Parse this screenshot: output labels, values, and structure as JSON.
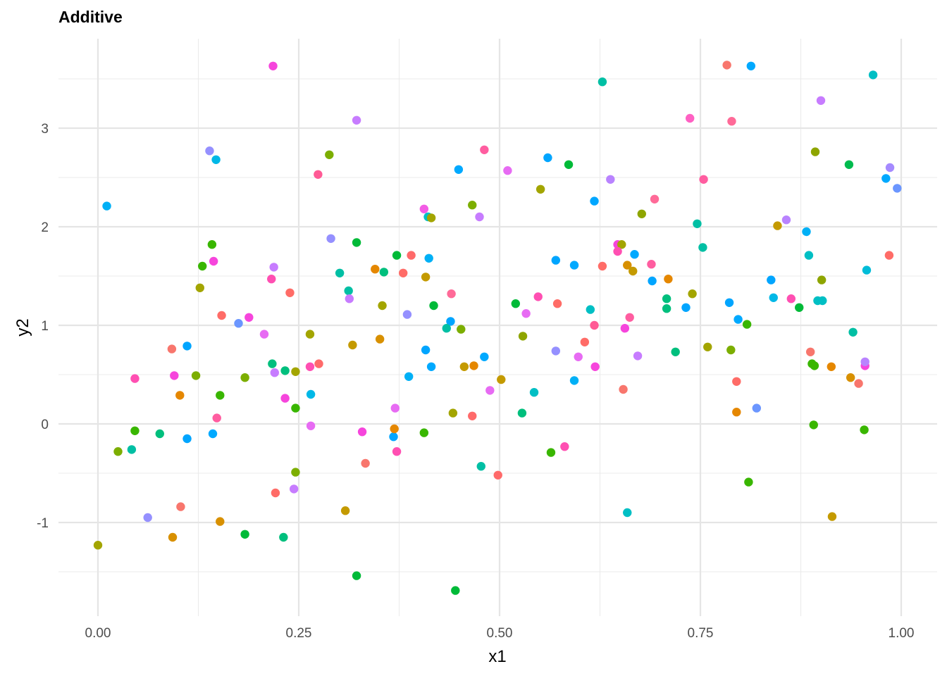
{
  "chart_data": {
    "type": "scatter",
    "title": "Additive",
    "xlabel": "x1",
    "ylabel": "y2",
    "xlim": [
      -0.048,
      1.046
    ],
    "ylim": [
      -1.95,
      3.92
    ],
    "xticks": [
      0.0,
      0.25,
      0.5,
      0.75,
      1.0
    ],
    "xtick_labels": [
      "0.00",
      "0.25",
      "0.50",
      "0.75",
      "1.00"
    ],
    "yticks": [
      -1,
      0,
      1,
      2,
      3
    ],
    "ytick_labels": [
      "-1",
      "0",
      "1",
      "2",
      "3"
    ],
    "grid": true,
    "legend": "none",
    "color_mapping": "hue palette by group (no legend shown)",
    "points": [
      [
        0.218,
        3.63,
        "#F645DC"
      ],
      [
        0.783,
        3.64,
        "#F8766D"
      ],
      [
        0.813,
        3.63,
        "#00A9FF"
      ],
      [
        0.965,
        3.54,
        "#00BFC4"
      ],
      [
        0.628,
        3.47,
        "#00BFA4"
      ],
      [
        0.9,
        3.28,
        "#C77CFF"
      ],
      [
        0.322,
        3.08,
        "#C77CFF"
      ],
      [
        0.737,
        3.1,
        "#FF61C3"
      ],
      [
        0.789,
        3.07,
        "#FF6A98"
      ],
      [
        0.139,
        2.77,
        "#9590FF"
      ],
      [
        0.147,
        2.68,
        "#00B8E7"
      ],
      [
        0.288,
        2.73,
        "#7CAE00"
      ],
      [
        0.56,
        2.7,
        "#00A5FF"
      ],
      [
        0.586,
        2.63,
        "#00BA38"
      ],
      [
        0.893,
        2.76,
        "#8EA500"
      ],
      [
        0.935,
        2.63,
        "#00BB4E"
      ],
      [
        0.481,
        2.78,
        "#FF5DA0"
      ],
      [
        0.449,
        2.58,
        "#00A9FF"
      ],
      [
        0.51,
        2.57,
        "#E76BF3"
      ],
      [
        0.986,
        2.6,
        "#A58AFF"
      ],
      [
        0.981,
        2.49,
        "#00A9FF"
      ],
      [
        0.995,
        2.39,
        "#6B96FF"
      ],
      [
        0.011,
        2.21,
        "#00B0F6"
      ],
      [
        0.274,
        2.53,
        "#FF5A95"
      ],
      [
        0.551,
        2.38,
        "#A3A500"
      ],
      [
        0.638,
        2.48,
        "#B983FF"
      ],
      [
        0.754,
        2.48,
        "#FF5DA0"
      ],
      [
        0.618,
        2.26,
        "#00A6FF"
      ],
      [
        0.693,
        2.28,
        "#FF6A98"
      ],
      [
        0.466,
        2.22,
        "#7CAE00"
      ],
      [
        0.406,
        2.18,
        "#F35CE5"
      ],
      [
        0.411,
        2.1,
        "#00BFC4"
      ],
      [
        0.415,
        2.09,
        "#A3A500"
      ],
      [
        0.475,
        2.1,
        "#C77CFF"
      ],
      [
        0.677,
        2.13,
        "#8EA500"
      ],
      [
        0.746,
        2.03,
        "#00BFA4"
      ],
      [
        0.846,
        2.01,
        "#C49A00"
      ],
      [
        0.857,
        2.07,
        "#B983FF"
      ],
      [
        0.882,
        1.95,
        "#00B0F6"
      ],
      [
        0.142,
        1.82,
        "#39B600"
      ],
      [
        0.29,
        1.88,
        "#9590FF"
      ],
      [
        0.322,
        1.84,
        "#00BA38"
      ],
      [
        0.372,
        1.71,
        "#00BA38"
      ],
      [
        0.39,
        1.71,
        "#FF6A6A"
      ],
      [
        0.412,
        1.68,
        "#00B0F6"
      ],
      [
        0.13,
        1.6,
        "#39B600"
      ],
      [
        0.144,
        1.65,
        "#F645DC"
      ],
      [
        0.219,
        1.59,
        "#C77CFF"
      ],
      [
        0.301,
        1.53,
        "#00BFA4"
      ],
      [
        0.345,
        1.57,
        "#E58700"
      ],
      [
        0.356,
        1.54,
        "#00BF7D"
      ],
      [
        0.38,
        1.53,
        "#FF6C67"
      ],
      [
        0.57,
        1.66,
        "#00A5FF"
      ],
      [
        0.593,
        1.61,
        "#00A9FF"
      ],
      [
        0.628,
        1.6,
        "#FF6C67"
      ],
      [
        0.647,
        1.82,
        "#F645DC"
      ],
      [
        0.652,
        1.82,
        "#A3A500"
      ],
      [
        0.647,
        1.75,
        "#FF4FB2"
      ],
      [
        0.659,
        1.61,
        "#D89000"
      ],
      [
        0.668,
        1.72,
        "#00A9FF"
      ],
      [
        0.666,
        1.55,
        "#C49A00"
      ],
      [
        0.689,
        1.62,
        "#FF5DA0"
      ],
      [
        0.69,
        1.45,
        "#00A5FF"
      ],
      [
        0.71,
        1.47,
        "#E58700"
      ],
      [
        0.753,
        1.79,
        "#00BFA4"
      ],
      [
        0.885,
        1.71,
        "#00BFC4"
      ],
      [
        0.901,
        1.46,
        "#8EA500"
      ],
      [
        0.957,
        1.56,
        "#00BCD8"
      ],
      [
        0.985,
        1.71,
        "#FF6C67"
      ],
      [
        0.127,
        1.38,
        "#A3A500"
      ],
      [
        0.216,
        1.47,
        "#FF4FB2"
      ],
      [
        0.239,
        1.33,
        "#FF6C67"
      ],
      [
        0.312,
        1.35,
        "#00BFA4"
      ],
      [
        0.313,
        1.27,
        "#C77CFF"
      ],
      [
        0.354,
        1.2,
        "#A3A500"
      ],
      [
        0.408,
        1.49,
        "#C49A00"
      ],
      [
        0.418,
        1.2,
        "#00BA38"
      ],
      [
        0.44,
        1.32,
        "#FF6A98"
      ],
      [
        0.439,
        1.04,
        "#00A5FF"
      ],
      [
        0.154,
        1.1,
        "#FF6C67"
      ],
      [
        0.175,
        1.02,
        "#6B96FF"
      ],
      [
        0.188,
        1.08,
        "#F645DC"
      ],
      [
        0.385,
        1.11,
        "#9590FF"
      ],
      [
        0.52,
        1.22,
        "#00BA38"
      ],
      [
        0.548,
        1.29,
        "#FF4FB2"
      ],
      [
        0.533,
        1.12,
        "#E76BF3"
      ],
      [
        0.572,
        1.22,
        "#FF6C67"
      ],
      [
        0.613,
        1.16,
        "#00BFC4"
      ],
      [
        0.618,
        1.0,
        "#FF5A95"
      ],
      [
        0.708,
        1.27,
        "#00BF7D"
      ],
      [
        0.708,
        1.17,
        "#00BF7D"
      ],
      [
        0.732,
        1.18,
        "#00A5FF"
      ],
      [
        0.74,
        1.32,
        "#A3A500"
      ],
      [
        0.786,
        1.23,
        "#00A5FF"
      ],
      [
        0.797,
        1.06,
        "#00A9FF"
      ],
      [
        0.808,
        1.01,
        "#39B600"
      ],
      [
        0.841,
        1.28,
        "#00B8E7"
      ],
      [
        0.838,
        1.46,
        "#00A5FF"
      ],
      [
        0.863,
        1.27,
        "#FF4FB2"
      ],
      [
        0.873,
        1.18,
        "#00BA38"
      ],
      [
        0.896,
        1.25,
        "#00BFC4"
      ],
      [
        0.902,
        1.25,
        "#00BFC4"
      ],
      [
        0.662,
        1.08,
        "#FF5DA0"
      ],
      [
        0.656,
        0.97,
        "#F645DC"
      ],
      [
        0.434,
        0.97,
        "#00BFA4"
      ],
      [
        0.452,
        0.96,
        "#7CAE00"
      ],
      [
        0.264,
        0.91,
        "#A3A500"
      ],
      [
        0.207,
        0.91,
        "#E76BF3"
      ],
      [
        0.092,
        0.76,
        "#F8766D"
      ],
      [
        0.111,
        0.79,
        "#00A5FF"
      ],
      [
        0.317,
        0.8,
        "#C49A00"
      ],
      [
        0.351,
        0.86,
        "#D89000"
      ],
      [
        0.408,
        0.75,
        "#00A5FF"
      ],
      [
        0.529,
        0.89,
        "#8EA500"
      ],
      [
        0.481,
        0.68,
        "#00A9FF"
      ],
      [
        0.57,
        0.74,
        "#9590FF"
      ],
      [
        0.606,
        0.83,
        "#FF6C67"
      ],
      [
        0.598,
        0.68,
        "#E76BF3"
      ],
      [
        0.672,
        0.69,
        "#C77CFF"
      ],
      [
        0.719,
        0.73,
        "#00BF7D"
      ],
      [
        0.759,
        0.78,
        "#A3A500"
      ],
      [
        0.788,
        0.75,
        "#7CAE00"
      ],
      [
        0.887,
        0.73,
        "#F8766D"
      ],
      [
        0.94,
        0.93,
        "#00BFA4"
      ],
      [
        0.046,
        0.46,
        "#FF4FB2"
      ],
      [
        0.095,
        0.49,
        "#F645DC"
      ],
      [
        0.102,
        0.29,
        "#E58700"
      ],
      [
        0.122,
        0.49,
        "#7CAE00"
      ],
      [
        0.152,
        0.29,
        "#39B600"
      ],
      [
        0.183,
        0.47,
        "#7CAE00"
      ],
      [
        0.217,
        0.61,
        "#00BF7D"
      ],
      [
        0.22,
        0.52,
        "#C77CFF"
      ],
      [
        0.233,
        0.54,
        "#00BF7D"
      ],
      [
        0.246,
        0.53,
        "#A3A500"
      ],
      [
        0.264,
        0.58,
        "#FF4FB2"
      ],
      [
        0.275,
        0.61,
        "#FF6A6A"
      ],
      [
        0.265,
        0.3,
        "#00B8E7"
      ],
      [
        0.233,
        0.26,
        "#F645DC"
      ],
      [
        0.246,
        0.16,
        "#39B600"
      ],
      [
        0.148,
        0.06,
        "#FF5DA0"
      ],
      [
        0.415,
        0.58,
        "#00A9FF"
      ],
      [
        0.387,
        0.48,
        "#00B0F6"
      ],
      [
        0.456,
        0.58,
        "#C49A00"
      ],
      [
        0.468,
        0.59,
        "#E58700"
      ],
      [
        0.502,
        0.45,
        "#C49A00"
      ],
      [
        0.488,
        0.34,
        "#E76BF3"
      ],
      [
        0.543,
        0.32,
        "#00BFC4"
      ],
      [
        0.593,
        0.44,
        "#00B0F6"
      ],
      [
        0.619,
        0.58,
        "#F645DC"
      ],
      [
        0.654,
        0.35,
        "#F8766D"
      ],
      [
        0.795,
        0.43,
        "#FF6C67"
      ],
      [
        0.795,
        0.12,
        "#E58700"
      ],
      [
        0.82,
        0.16,
        "#6B96FF"
      ],
      [
        0.889,
        0.61,
        "#39B600"
      ],
      [
        0.892,
        0.59,
        "#39B600"
      ],
      [
        0.913,
        0.58,
        "#E58700"
      ],
      [
        0.937,
        0.47,
        "#D89000"
      ],
      [
        0.947,
        0.41,
        "#F8766D"
      ],
      [
        0.955,
        0.59,
        "#F645DC"
      ],
      [
        0.955,
        0.63,
        "#B983FF"
      ],
      [
        0.37,
        0.16,
        "#E76BF3"
      ],
      [
        0.442,
        0.11,
        "#A3A500"
      ],
      [
        0.466,
        0.08,
        "#FF6A6A"
      ],
      [
        0.528,
        0.11,
        "#00BF7D"
      ],
      [
        0.046,
        -0.07,
        "#39B600"
      ],
      [
        0.025,
        -0.28,
        "#7CAE00"
      ],
      [
        0.042,
        -0.26,
        "#00BFA4"
      ],
      [
        0.077,
        -0.1,
        "#00BF7D"
      ],
      [
        0.111,
        -0.15,
        "#00A5FF"
      ],
      [
        0.143,
        -0.1,
        "#00A9FF"
      ],
      [
        0.265,
        -0.02,
        "#E76BF3"
      ],
      [
        0.329,
        -0.08,
        "#F645DC"
      ],
      [
        0.368,
        -0.13,
        "#00A5FF"
      ],
      [
        0.369,
        -0.05,
        "#E58700"
      ],
      [
        0.372,
        -0.28,
        "#FF4FB2"
      ],
      [
        0.406,
        -0.09,
        "#39B600"
      ],
      [
        0.333,
        -0.4,
        "#F8766D"
      ],
      [
        0.564,
        -0.29,
        "#39B600"
      ],
      [
        0.581,
        -0.23,
        "#FF4FB2"
      ],
      [
        0.477,
        -0.43,
        "#00BFA4"
      ],
      [
        0.498,
        -0.52,
        "#FF6A6A"
      ],
      [
        0.891,
        -0.01,
        "#39B600"
      ],
      [
        0.954,
        -0.06,
        "#39B600"
      ],
      [
        0.221,
        -0.7,
        "#FF6C67"
      ],
      [
        0.244,
        -0.66,
        "#C77CFF"
      ],
      [
        0.246,
        -0.49,
        "#7CAE00"
      ],
      [
        0.103,
        -0.84,
        "#F8766D"
      ],
      [
        0.308,
        -0.88,
        "#C49A00"
      ],
      [
        0.81,
        -0.59,
        "#39B600"
      ],
      [
        0.659,
        -0.9,
        "#00BFC4"
      ],
      [
        0.062,
        -0.95,
        "#9590FF"
      ],
      [
        0.152,
        -0.99,
        "#D89000"
      ],
      [
        0.093,
        -1.15,
        "#D89000"
      ],
      [
        0.183,
        -1.12,
        "#00BA38"
      ],
      [
        0.231,
        -1.15,
        "#00BF7D"
      ],
      [
        0.914,
        -0.94,
        "#C49A00"
      ],
      [
        0.0,
        -1.23,
        "#A3A500"
      ],
      [
        0.322,
        -1.54,
        "#00BA38"
      ],
      [
        0.445,
        -1.69,
        "#00BA38"
      ]
    ]
  }
}
